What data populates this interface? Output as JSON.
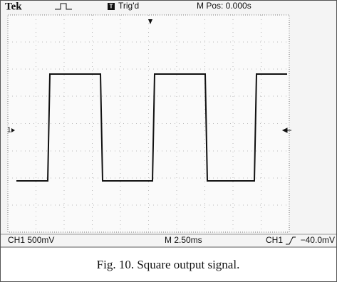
{
  "scope": {
    "brand": "Tek",
    "trigger_icon": "T",
    "trigger_status": "Trig'd",
    "position": "M Pos: 0.000s",
    "channel_marker": "1",
    "channel_scale": "CH1  500mV",
    "timebase": "M 2.50ms",
    "trigger_source": "CH1",
    "trigger_level": "−40.0mV"
  },
  "caption": "Fig. 10. Square output signal."
}
